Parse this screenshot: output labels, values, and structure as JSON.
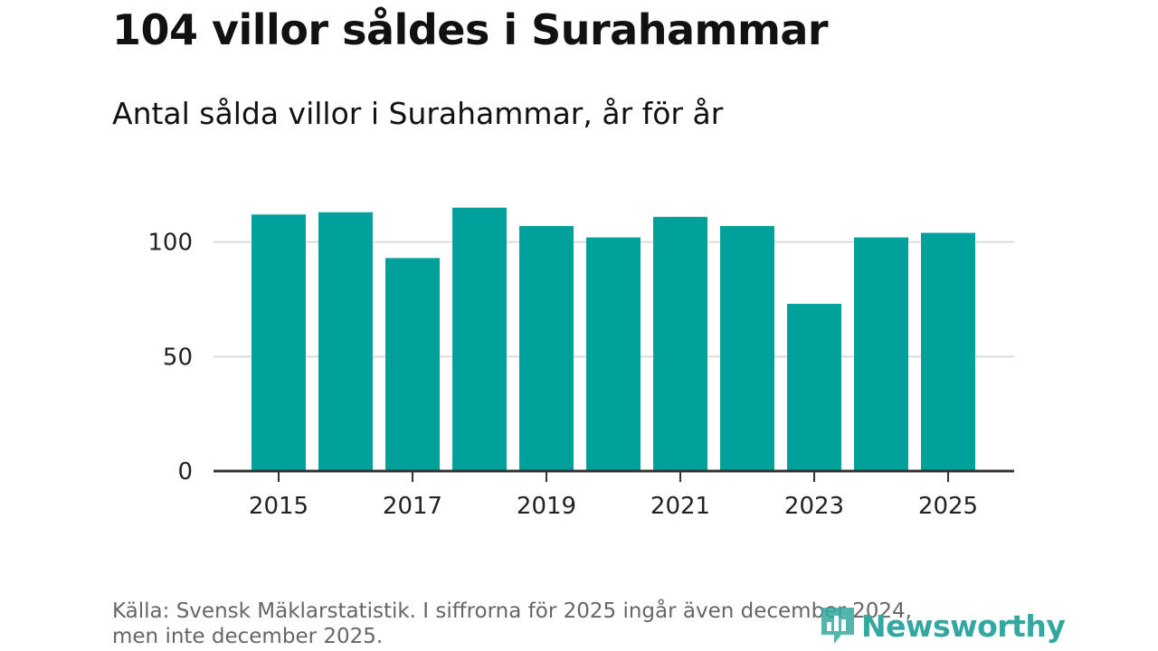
{
  "header": {
    "title": "104 villor såldes i Surahammar",
    "subtitle": "Antal sålda villor i Surahammar, år för år"
  },
  "chart_data": {
    "type": "bar",
    "categories": [
      "2015",
      "2016",
      "2017",
      "2018",
      "2019",
      "2020",
      "2021",
      "2022",
      "2023",
      "2024",
      "2025"
    ],
    "values": [
      112,
      113,
      93,
      115,
      107,
      102,
      111,
      107,
      73,
      102,
      104
    ],
    "x_tick_labels": [
      "2015",
      "2017",
      "2019",
      "2021",
      "2023",
      "2025"
    ],
    "y_ticks": [
      0,
      50,
      100
    ],
    "ylim": [
      0,
      120
    ],
    "grid": true,
    "bar_color": "#00a19a",
    "title": "104 villor såldes i Surahammar",
    "subtitle": "Antal sålda villor i Surahammar, år för år",
    "xlabel": "",
    "ylabel": ""
  },
  "footer": {
    "source_line1": "Källa: Svensk Mäklarstatistik. I siffrorna för 2025 ingår även december 2024,",
    "source_line2": "men inte december 2025."
  },
  "brand": {
    "name": "Newsworthy",
    "icon": "bar-chart-logo-icon",
    "color": "#34a8a0"
  }
}
